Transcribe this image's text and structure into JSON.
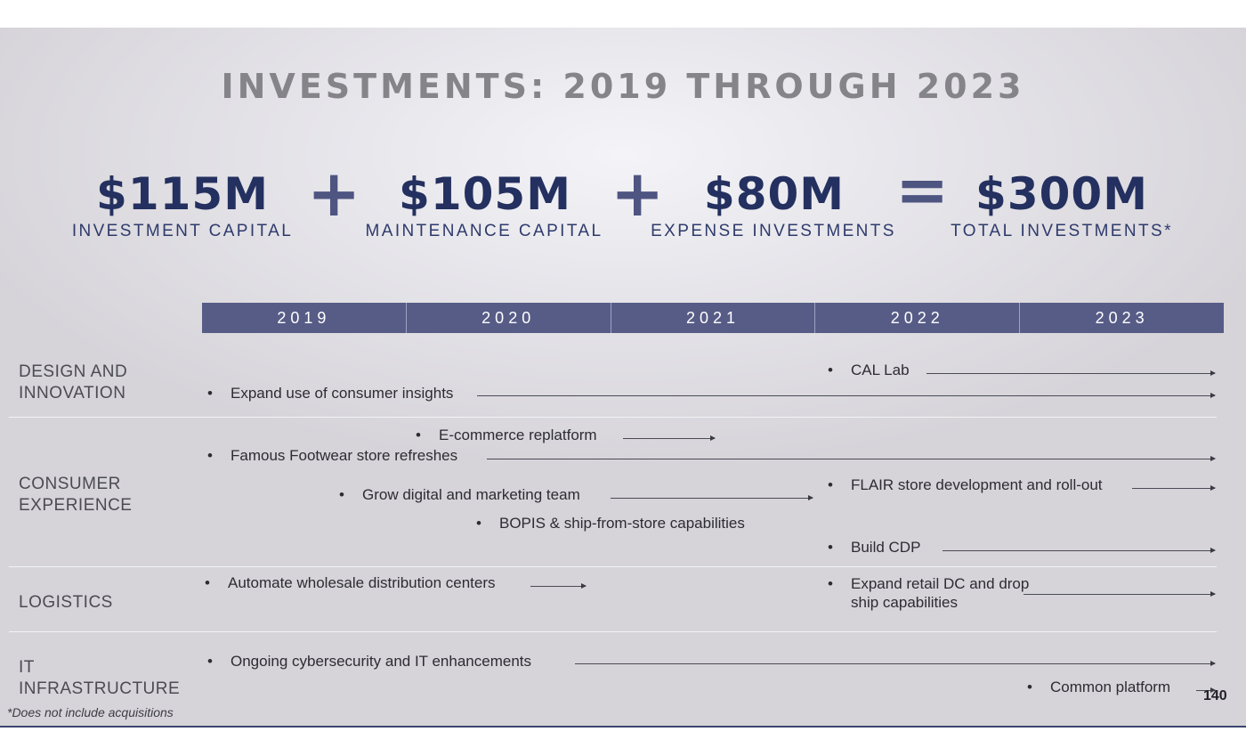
{
  "title": "INVESTMENTS:  2019 THROUGH 2023",
  "summary": [
    {
      "amount": "$115M",
      "label": "INVESTMENT CAPITAL"
    },
    {
      "amount": "$105M",
      "label": "MAINTENANCE CAPITAL"
    },
    {
      "amount": "$80M",
      "label": "EXPENSE INVESTMENTS"
    },
    {
      "amount": "$300M",
      "label": "TOTAL INVESTMENTS*"
    }
  ],
  "operators": {
    "plus": "+",
    "equals": "="
  },
  "years": [
    "2019",
    "2020",
    "2021",
    "2022",
    "2023"
  ],
  "categories": {
    "design": "DESIGN AND\nINNOVATION",
    "consumer": "CONSUMER\nEXPERIENCE",
    "logistics": "LOGISTICS",
    "it": "IT\nINFRASTRUCTURE"
  },
  "items": {
    "cal_lab": "CAL Lab",
    "consumer_insights": "Expand use of consumer insights",
    "ecommerce": "E-commerce replatform",
    "famous_footwear": "Famous Footwear store refreshes",
    "digital_team": "Grow digital and marketing team",
    "flair": "FLAIR store development and roll-out",
    "bopis": "BOPIS & ship-from-store capabilities",
    "cdp": "Build CDP",
    "automate_dc": "Automate wholesale distribution centers",
    "retail_dc_line1": "Expand retail DC and drop",
    "retail_dc_line2": "ship capabilities",
    "cybersecurity": "Ongoing cybersecurity and IT enhancements",
    "common_platform": "Common platform"
  },
  "bullet": "•",
  "footnote": "*Does not include acquisitions",
  "page_number": "140",
  "colors": {
    "accent_navy": "#24305f",
    "year_bar": "#575c86",
    "title_gray": "#858589"
  }
}
